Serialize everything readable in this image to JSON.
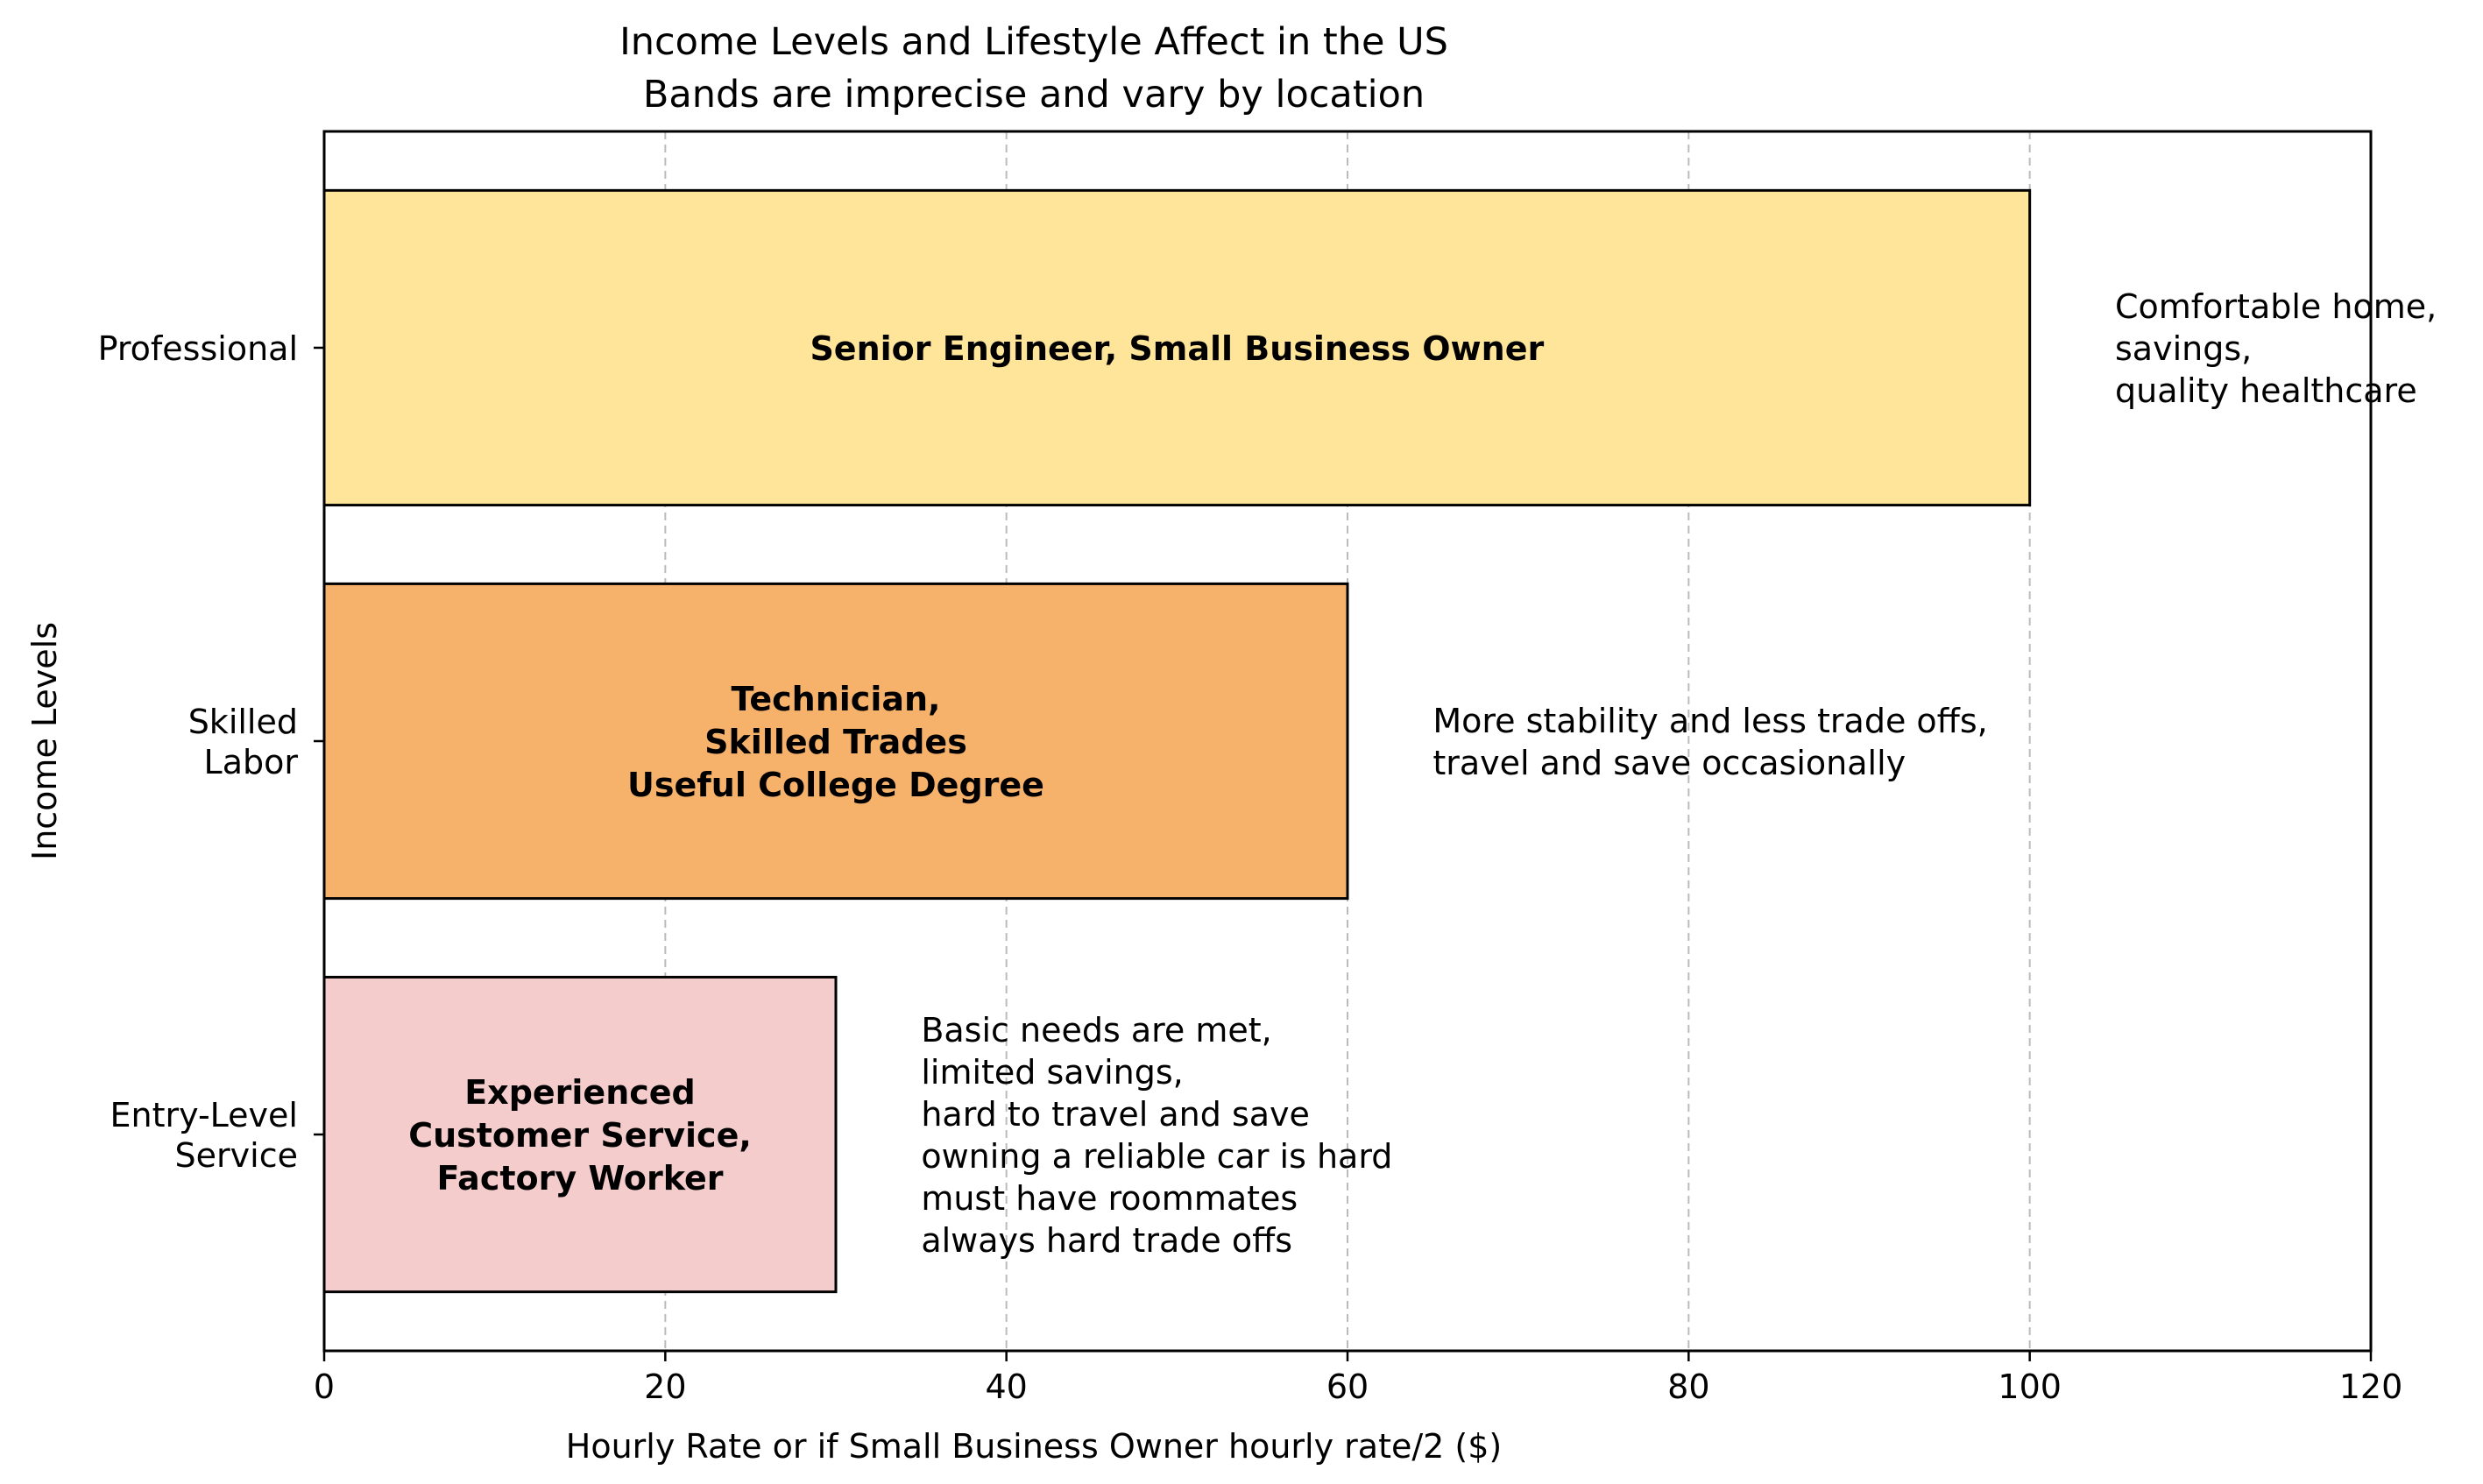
{
  "chart_data": {
    "type": "bar",
    "orientation": "horizontal",
    "title": "Income Levels and Lifestyle Affect in the US",
    "subtitle": "Bands are imprecise and vary by location",
    "xlabel": "Hourly Rate or if Small Business Owner hourly rate/2 ($)",
    "ylabel": "Income Levels",
    "xlim": [
      0,
      120
    ],
    "xticks": [
      "0",
      "20",
      "40",
      "60",
      "80",
      "100",
      "120"
    ],
    "grid": "x-dashed",
    "categories": [
      {
        "lines": [
          "Entry-Level",
          "Service"
        ],
        "value": 30,
        "color": "#f4cccc",
        "bar_label": [
          "Experienced",
          "Customer Service,",
          "Factory Worker"
        ],
        "note": [
          "Basic needs are met,",
          "limited savings,",
          "hard to travel and save",
          "owning a reliable car is hard",
          "must have roommates",
          "always hard trade offs"
        ]
      },
      {
        "lines": [
          "Skilled",
          "Labor"
        ],
        "value": 60,
        "color": "#f6b26b",
        "bar_label": [
          "Technician,",
          "Skilled Trades",
          "Useful College Degree"
        ],
        "note": [
          "More stability and less trade offs,",
          "travel and save occasionally"
        ]
      },
      {
        "lines": [
          "Professional"
        ],
        "value": 100,
        "color": "#ffe599",
        "bar_label": [
          "Senior Engineer, Small Business Owner"
        ],
        "note": [
          "Comfortable home,",
          "savings,",
          "quality healthcare"
        ]
      }
    ]
  }
}
